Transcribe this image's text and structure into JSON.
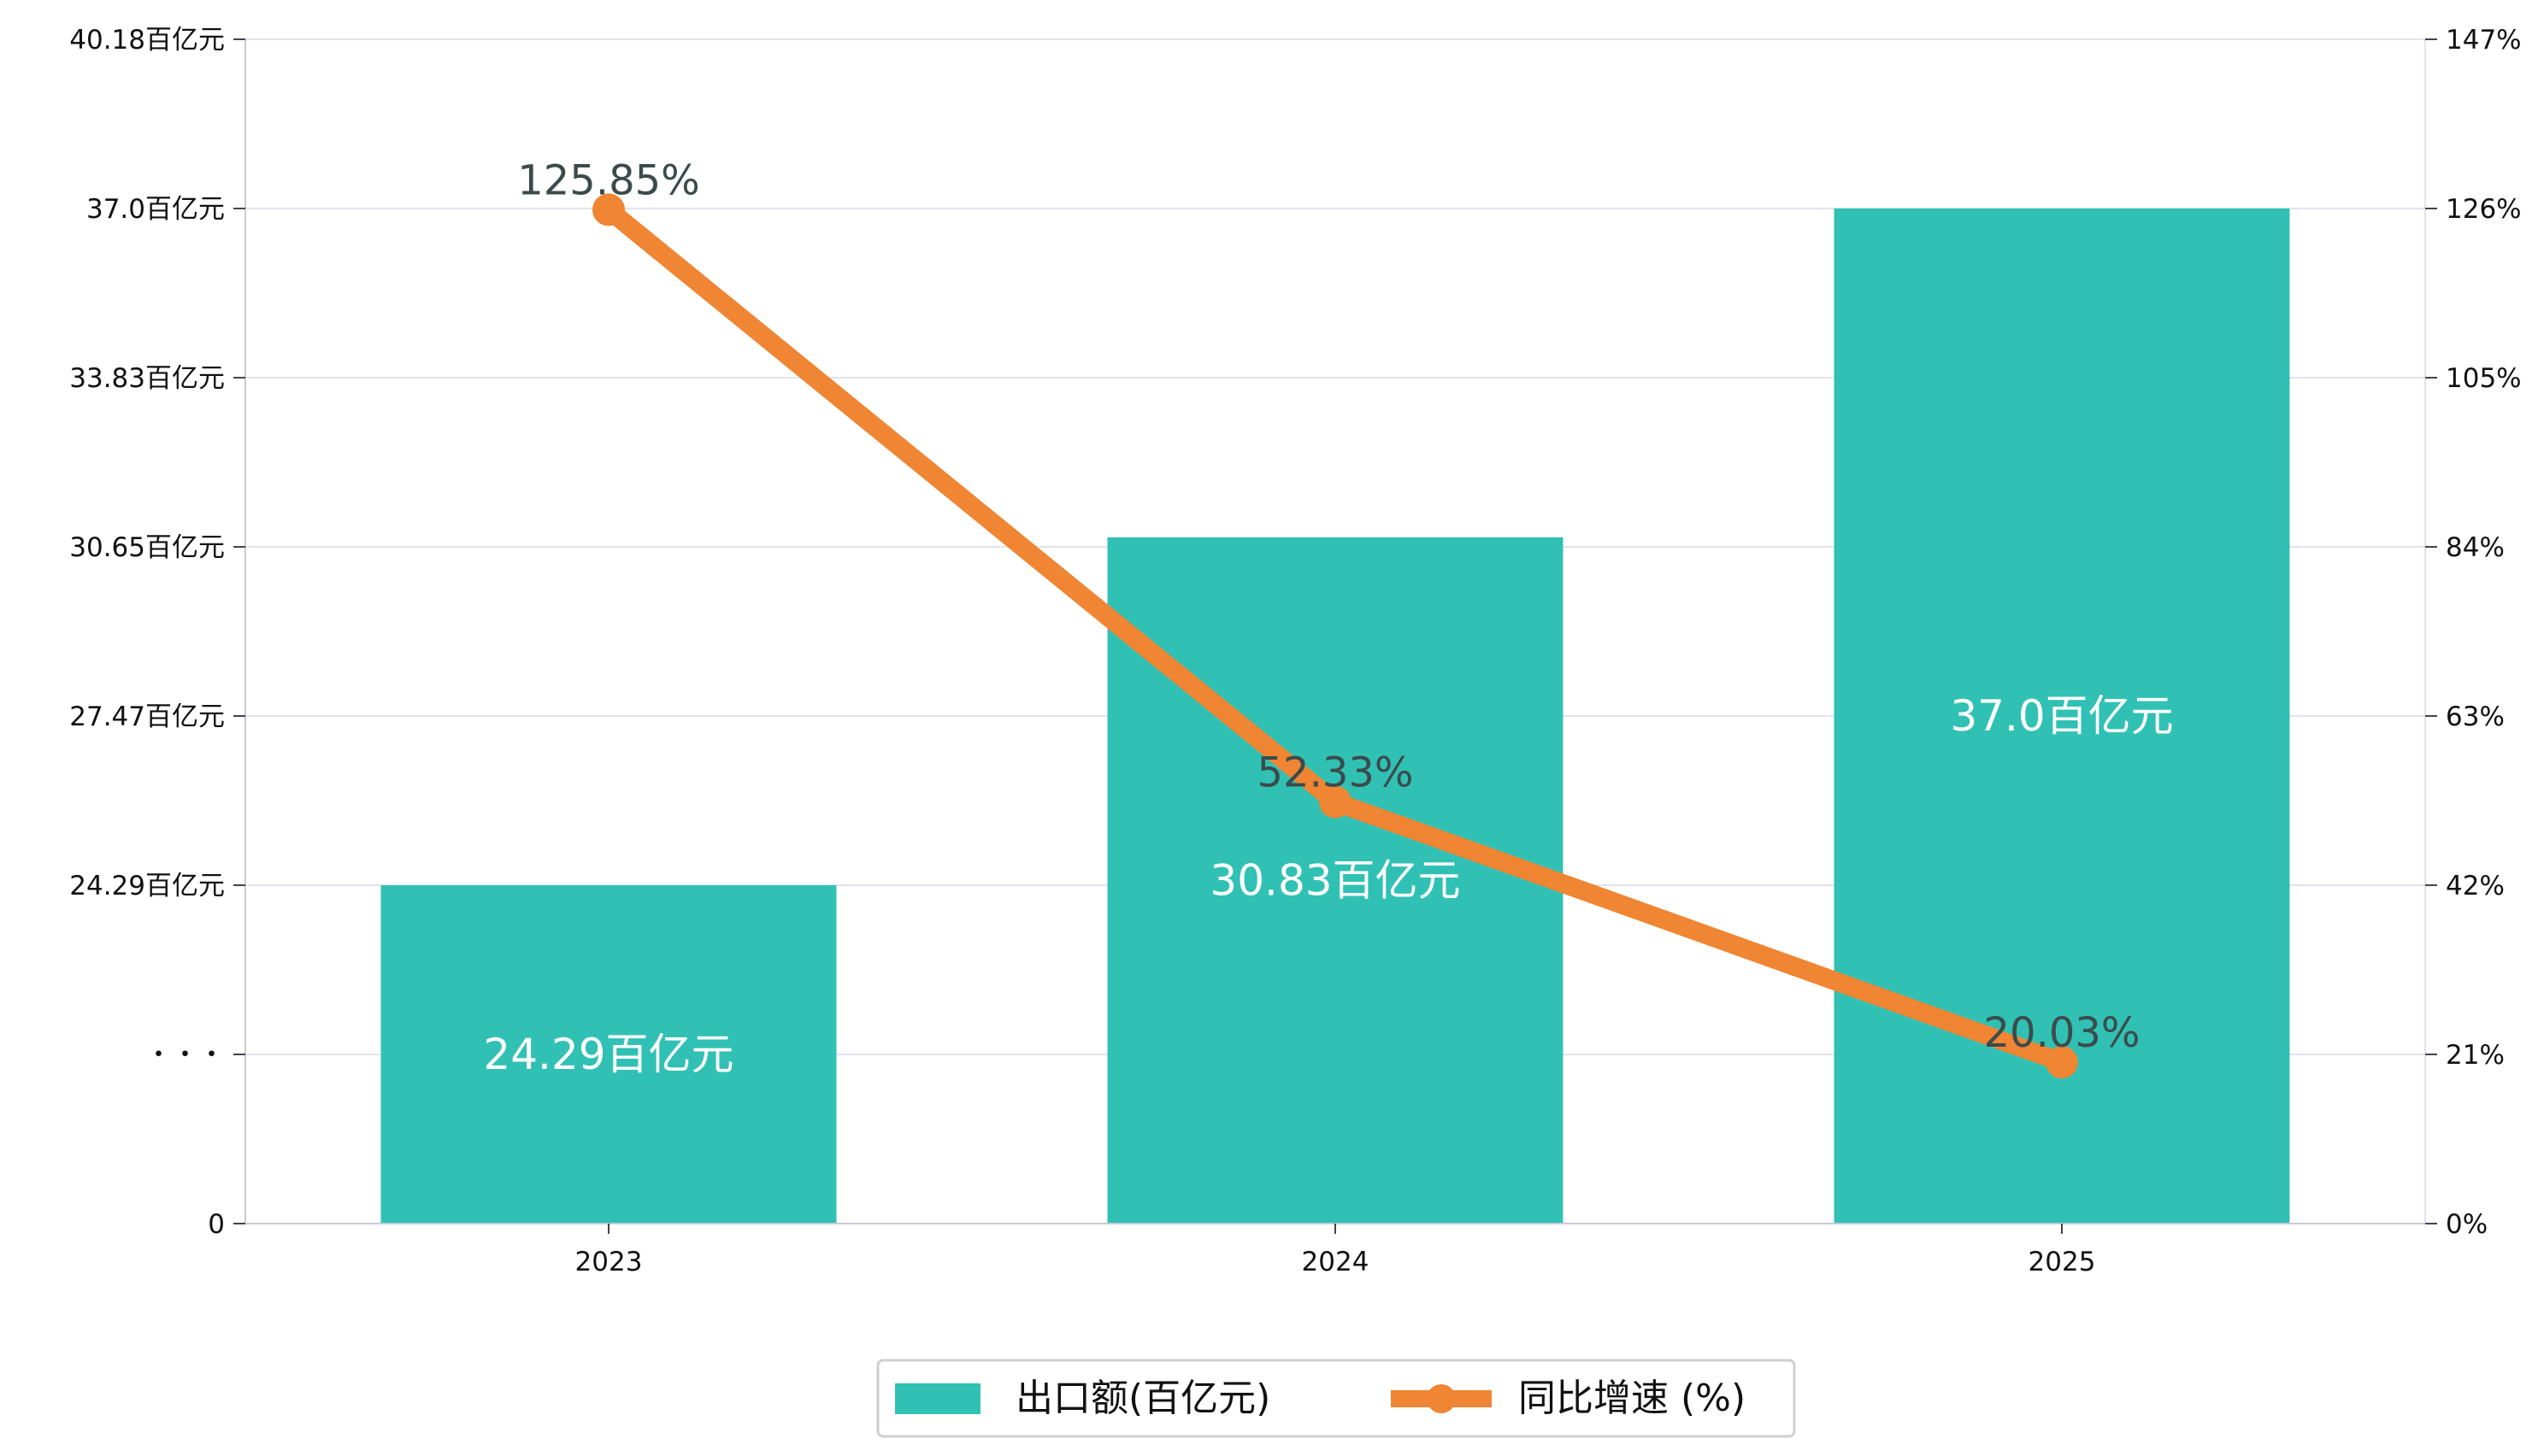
{
  "chart_data": {
    "type": "bar",
    "categories": [
      "2023",
      "2024",
      "2025"
    ],
    "series": [
      {
        "name": "出口额(百亿元)",
        "type": "bar",
        "axis": "left",
        "values": [
          24.29,
          30.83,
          37.0
        ],
        "labels": [
          "24.29百亿元",
          "30.83百亿元",
          "37.0百亿元"
        ],
        "color": "#30c1b4"
      },
      {
        "name": "同比增速 (%)",
        "type": "line",
        "axis": "right",
        "values": [
          125.85,
          52.33,
          20.03
        ],
        "labels": [
          "125.85%",
          "52.33%",
          "20.03%"
        ],
        "color": "#f08533"
      }
    ],
    "y_left": {
      "ticks": [
        0,
        21,
        24.29,
        27.47,
        30.65,
        33.83,
        37.0,
        40.18
      ],
      "tick_labels": [
        "0",
        "・・・",
        "24.29百亿元",
        "27.47百亿元",
        "30.65百亿元",
        "33.83百亿元",
        "37.0百亿元",
        "40.18百亿元"
      ],
      "broken": true
    },
    "y_right": {
      "ylim": [
        0,
        147
      ],
      "ticks": [
        0,
        21,
        42,
        63,
        84,
        105,
        126,
        147
      ],
      "tick_labels": [
        "0%",
        "21%",
        "42%",
        "63%",
        "84%",
        "105%",
        "126%",
        "147%"
      ]
    },
    "grid": true,
    "legend": "bottom-center",
    "title": "",
    "xlabel": "",
    "ylabel": ""
  }
}
